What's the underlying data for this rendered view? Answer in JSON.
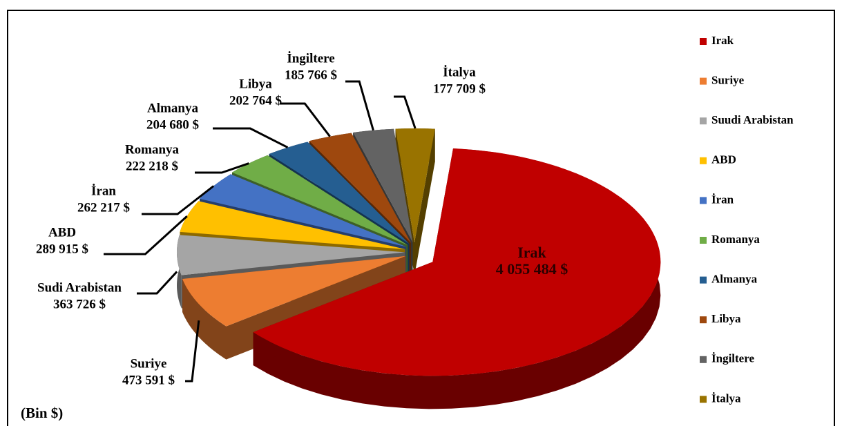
{
  "chart_data": {
    "type": "pie",
    "categories": [
      "Irak",
      "Suriye",
      "Suudi Arabistan",
      "ABD",
      "İran",
      "Romanya",
      "Almanya",
      "Libya",
      "İngiltere",
      "İtalya"
    ],
    "label_names": [
      "Irak",
      "Suriye",
      "Sudi Arabistan",
      "ABD",
      "İran",
      "Romanya",
      "Almanya",
      "Libya",
      "İngiltere",
      "İtalya"
    ],
    "values": [
      4055484,
      473591,
      363726,
      289915,
      262217,
      222218,
      204680,
      202764,
      185766,
      177709
    ],
    "value_labels": [
      "4 055 484 $",
      "473 591 $",
      "363 726 $",
      "289 915 $",
      "262 217 $",
      "222 218 $",
      "204 680 $",
      "202 764 $",
      "185 766 $",
      "177 709 $"
    ],
    "colors": [
      "#c00000",
      "#ed7d31",
      "#a5a5a5",
      "#ffc000",
      "#4472c4",
      "#70ad47",
      "#255e91",
      "#9e480e",
      "#636363",
      "#997300"
    ],
    "unit_note": "(Bin $)",
    "legend": "right"
  }
}
